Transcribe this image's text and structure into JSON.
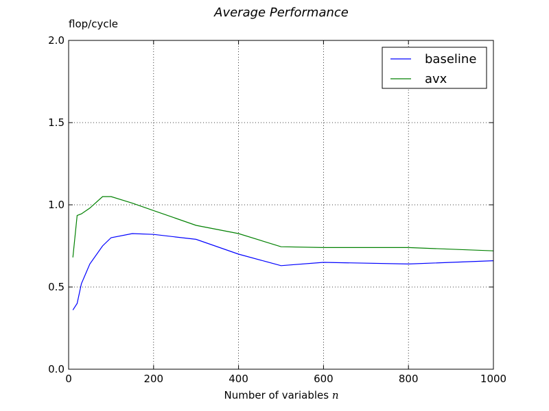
{
  "chart_data": {
    "type": "line",
    "title": "Average Performance",
    "ylabel": "flop/cycle",
    "xlabel": "Number of variables",
    "xlabel_var": "n",
    "xlim": [
      0,
      1000
    ],
    "ylim": [
      0.0,
      2.0
    ],
    "xticks": [
      0,
      200,
      400,
      600,
      800,
      1000
    ],
    "xtick_labels": [
      "0",
      "200",
      "400",
      "600",
      "800",
      "1000"
    ],
    "yticks": [
      0.0,
      0.5,
      1.0,
      1.5,
      2.0
    ],
    "ytick_labels": [
      "0.0",
      "0.5",
      "1.0",
      "1.5",
      "2.0"
    ],
    "grid": true,
    "legend_position": "top-right",
    "series": [
      {
        "name": "baseline",
        "color": "#0000ff",
        "x": [
          10,
          20,
          30,
          50,
          80,
          100,
          150,
          200,
          300,
          400,
          500,
          600,
          800,
          1000
        ],
        "y": [
          0.36,
          0.4,
          0.52,
          0.64,
          0.75,
          0.8,
          0.825,
          0.82,
          0.79,
          0.7,
          0.63,
          0.65,
          0.64,
          0.66
        ]
      },
      {
        "name": "avx",
        "color": "#008000",
        "x": [
          10,
          20,
          30,
          50,
          80,
          100,
          150,
          200,
          300,
          400,
          500,
          600,
          800,
          1000
        ],
        "y": [
          0.68,
          0.935,
          0.945,
          0.98,
          1.05,
          1.05,
          1.01,
          0.965,
          0.875,
          0.825,
          0.745,
          0.74,
          0.74,
          0.72
        ]
      }
    ]
  }
}
